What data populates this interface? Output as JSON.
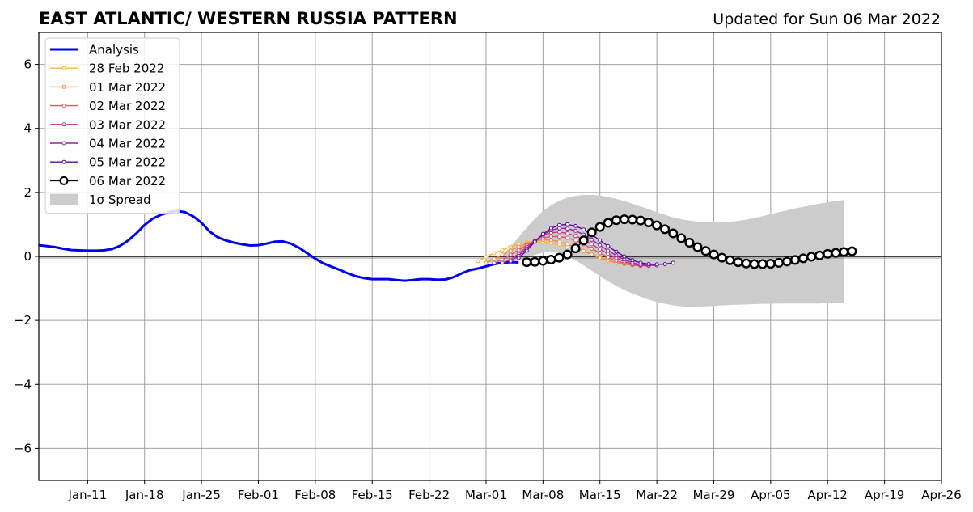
{
  "chart_data": {
    "type": "line",
    "title": "EAST ATLANTIC/ WESTERN RUSSIA PATTERN",
    "subtitle": "Updated for Sun 06 Mar 2022",
    "xlabel": "",
    "ylabel": "",
    "xlim": [
      "2022-01-05",
      "2022-04-26"
    ],
    "ylim": [
      -7,
      7
    ],
    "grid": true,
    "legend_position": "top-left",
    "x_ticks": [
      "2022-01-11",
      "2022-01-18",
      "2022-01-25",
      "2022-02-01",
      "2022-02-08",
      "2022-02-15",
      "2022-02-22",
      "2022-03-01",
      "2022-03-08",
      "2022-03-15",
      "2022-03-22",
      "2022-03-29",
      "2022-04-05",
      "2022-04-12",
      "2022-04-19",
      "2022-04-26"
    ],
    "x_tick_labels": [
      "Jan-11",
      "Jan-18",
      "Jan-25",
      "Feb-01",
      "Feb-08",
      "Feb-15",
      "Feb-22",
      "Mar-01",
      "Mar-08",
      "Mar-15",
      "Mar-22",
      "Mar-29",
      "Apr-05",
      "Apr-12",
      "Apr-19",
      "Apr-26"
    ],
    "y_ticks": [
      -6,
      -4,
      -2,
      0,
      2,
      4,
      6
    ],
    "y_tick_labels": [
      "−6",
      "−4",
      "−2",
      "0",
      "2",
      "4",
      "6"
    ],
    "legend": [
      {
        "label": "Analysis",
        "color": "#0000ee",
        "kind": "line"
      },
      {
        "label": "28 Feb 2022",
        "color": "#fdb42f",
        "kind": "dotline"
      },
      {
        "label": "01 Mar 2022",
        "color": "#f58a3c",
        "kind": "dotline"
      },
      {
        "label": "02 Mar 2022",
        "color": "#e0566b",
        "kind": "dotline"
      },
      {
        "label": "03 Mar 2022",
        "color": "#c03a8b",
        "kind": "dotline"
      },
      {
        "label": "04 Mar 2022",
        "color": "#9520a3",
        "kind": "dotline"
      },
      {
        "label": "05 Mar 2022",
        "color": "#5a08a6",
        "kind": "dotline"
      },
      {
        "label": "06 Mar 2022",
        "color": "#000000",
        "kind": "circles"
      },
      {
        "label": "1σ Spread",
        "color": "#cccccc",
        "kind": "patch"
      }
    ],
    "analysis": {
      "color": "#0000ee",
      "start": "2022-01-05",
      "values": [
        0.35,
        0.32,
        0.29,
        0.24,
        0.2,
        0.19,
        0.18,
        0.18,
        0.19,
        0.23,
        0.33,
        0.5,
        0.72,
        0.98,
        1.18,
        1.3,
        1.38,
        1.42,
        1.38,
        1.25,
        1.05,
        0.78,
        0.6,
        0.5,
        0.43,
        0.38,
        0.34,
        0.35,
        0.4,
        0.46,
        0.47,
        0.4,
        0.27,
        0.1,
        -0.07,
        -0.22,
        -0.32,
        -0.42,
        -0.53,
        -0.62,
        -0.68,
        -0.71,
        -0.71,
        -0.71,
        -0.74,
        -0.76,
        -0.74,
        -0.71,
        -0.71,
        -0.73,
        -0.72,
        -0.65,
        -0.53,
        -0.43,
        -0.38,
        -0.31,
        -0.24,
        -0.2,
        -0.18,
        -0.19
      ]
    },
    "forecasts": [
      {
        "name": "28 Feb 2022",
        "color": "#fdb42f",
        "start": "2022-02-28",
        "values": [
          -0.15,
          -0.02,
          0.1,
          0.2,
          0.3,
          0.38,
          0.44,
          0.46,
          0.45,
          0.42,
          0.37,
          0.31,
          0.24,
          0.16,
          0.07,
          -0.02,
          -0.1,
          -0.16,
          -0.2,
          -0.24
        ]
      },
      {
        "name": "01 Mar 2022",
        "color": "#f58a3c",
        "start": "2022-03-01",
        "values": [
          -0.2,
          -0.08,
          0.06,
          0.18,
          0.3,
          0.4,
          0.48,
          0.52,
          0.51,
          0.46,
          0.38,
          0.28,
          0.17,
          0.06,
          -0.05,
          -0.13,
          -0.2,
          -0.24,
          -0.27
        ]
      },
      {
        "name": "02 Mar 2022",
        "color": "#e0566b",
        "start": "2022-03-02",
        "values": [
          -0.2,
          -0.1,
          0.05,
          0.2,
          0.35,
          0.48,
          0.58,
          0.62,
          0.62,
          0.58,
          0.5,
          0.38,
          0.24,
          0.1,
          -0.03,
          -0.14,
          -0.22,
          -0.27,
          -0.3
        ]
      },
      {
        "name": "03 Mar 2022",
        "color": "#c03a8b",
        "start": "2022-03-03",
        "values": [
          -0.2,
          -0.1,
          0.08,
          0.3,
          0.5,
          0.65,
          0.74,
          0.76,
          0.72,
          0.64,
          0.52,
          0.38,
          0.22,
          0.08,
          -0.05,
          -0.16,
          -0.24,
          -0.28,
          -0.3
        ]
      },
      {
        "name": "04 Mar 2022",
        "color": "#9520a3",
        "start": "2022-03-04",
        "values": [
          -0.15,
          0.02,
          0.25,
          0.48,
          0.68,
          0.82,
          0.88,
          0.87,
          0.8,
          0.68,
          0.52,
          0.35,
          0.18,
          0.03,
          -0.1,
          -0.2,
          -0.26,
          -0.28,
          -0.28
        ]
      },
      {
        "name": "05 Mar 2022",
        "color": "#5a08a6",
        "start": "2022-03-05",
        "values": [
          -0.05,
          0.18,
          0.46,
          0.7,
          0.88,
          0.98,
          1.0,
          0.95,
          0.84,
          0.68,
          0.5,
          0.32,
          0.15,
          0.0,
          -0.12,
          -0.2,
          -0.24,
          -0.25,
          -0.24,
          -0.2
        ]
      },
      {
        "name": "06 Mar 2022",
        "color": "#000000",
        "start": "2022-03-06",
        "marker": "circle",
        "values": [
          -0.18,
          -0.17,
          -0.14,
          -0.1,
          -0.04,
          0.06,
          0.25,
          0.5,
          0.75,
          0.92,
          1.05,
          1.13,
          1.16,
          1.15,
          1.12,
          1.06,
          0.97,
          0.85,
          0.72,
          0.57,
          0.43,
          0.29,
          0.17,
          0.06,
          -0.04,
          -0.12,
          -0.18,
          -0.22,
          -0.24,
          -0.24,
          -0.23,
          -0.2,
          -0.16,
          -0.11,
          -0.06,
          -0.01,
          0.03,
          0.08,
          0.11,
          0.14,
          0.16
        ]
      }
    ],
    "spread": {
      "label": "1σ Spread",
      "color": "#cccccc",
      "start": "2022-03-01",
      "upper": [
        -0.1,
        -0.05,
        0.05,
        0.3,
        0.6,
        0.9,
        1.18,
        1.42,
        1.6,
        1.74,
        1.84,
        1.89,
        1.92,
        1.92,
        1.9,
        1.86,
        1.8,
        1.73,
        1.65,
        1.56,
        1.47,
        1.38,
        1.3,
        1.22,
        1.16,
        1.12,
        1.09,
        1.07,
        1.06,
        1.06,
        1.08,
        1.11,
        1.15,
        1.2,
        1.26,
        1.32,
        1.38,
        1.44,
        1.5,
        1.55,
        1.6,
        1.65,
        1.69,
        1.73,
        1.76
      ],
      "lower": [
        -0.2,
        -0.2,
        -0.2,
        -0.18,
        -0.12,
        -0.05,
        0.05,
        0.12,
        0.15,
        0.12,
        0.02,
        -0.12,
        -0.28,
        -0.45,
        -0.62,
        -0.78,
        -0.92,
        -1.05,
        -1.16,
        -1.26,
        -1.35,
        -1.42,
        -1.48,
        -1.53,
        -1.56,
        -1.57,
        -1.57,
        -1.56,
        -1.55,
        -1.53,
        -1.52,
        -1.51,
        -1.5,
        -1.49,
        -1.48,
        -1.48,
        -1.47,
        -1.47,
        -1.47,
        -1.47,
        -1.47,
        -1.47,
        -1.46,
        -1.46,
        -1.46
      ]
    }
  }
}
